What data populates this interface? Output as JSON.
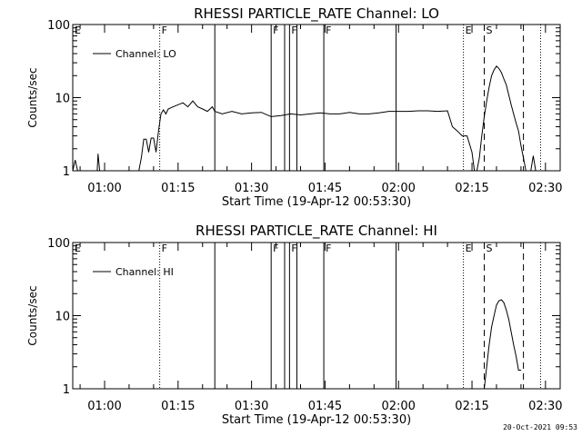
{
  "timestamp": "20-Oct-2021 09:53",
  "chart_data": [
    {
      "type": "line",
      "title": "RHESSI PARTICLE_RATE Channel: LO",
      "xlabel": "Start Time (19-Apr-12 00:53:30)",
      "ylabel": "Counts/sec",
      "y_scale": "log",
      "ylim": [
        1,
        100
      ],
      "xlim": [
        "00:53:30",
        "02:33:00"
      ],
      "x_tick_labels": [
        "01:00",
        "01:15",
        "01:30",
        "01:45",
        "02:00",
        "02:15",
        "02:30"
      ],
      "y_tick_labels": [
        "1",
        "10",
        "100"
      ],
      "legend": {
        "label": "Channel: LO",
        "placement": "top-left"
      },
      "markers": [
        {
          "time": "00:53:30",
          "label": "E",
          "style": "solid"
        },
        {
          "time": "01:11:15",
          "label": "F",
          "style": "dotted"
        },
        {
          "time": "01:22:30",
          "label": "",
          "style": "solid"
        },
        {
          "time": "01:34:00",
          "label": "F",
          "style": "solid"
        },
        {
          "time": "01:36:45",
          "label": "",
          "style": "solid"
        },
        {
          "time": "01:37:45",
          "label": "F",
          "style": "solid"
        },
        {
          "time": "01:39:15",
          "label": "",
          "style": "solid"
        },
        {
          "time": "01:44:45",
          "label": "F",
          "style": "solid"
        },
        {
          "time": "01:59:30",
          "label": "",
          "style": "solid"
        },
        {
          "time": "02:13:15",
          "label": "E",
          "style": "dotted"
        },
        {
          "time": "02:17:30",
          "label": "S",
          "style": "dashed"
        },
        {
          "time": "02:25:30",
          "label": "",
          "style": "dashed"
        },
        {
          "time": "02:29:00",
          "label": "",
          "style": "dotted"
        }
      ],
      "series": [
        {
          "name": "Channel: LO",
          "x": [
            "00:53:30",
            "00:54:00",
            "00:54:30",
            "00:55:00",
            "00:55:30",
            "00:56:00",
            "00:58:30",
            "00:58:40",
            "00:59:00",
            "00:59:30",
            "01:00:00",
            "01:01:00",
            "01:02:00",
            "01:03:00",
            "01:04:00",
            "01:05:00",
            "01:06:00",
            "01:07:00",
            "01:07:30",
            "01:08:00",
            "01:08:30",
            "01:09:00",
            "01:09:30",
            "01:10:00",
            "01:10:30",
            "01:11:00",
            "01:11:30",
            "01:12:00",
            "01:12:30",
            "01:13:00",
            "01:14:00",
            "01:15:00",
            "01:16:00",
            "01:17:00",
            "01:18:00",
            "01:19:00",
            "01:20:00",
            "01:21:00",
            "01:22:00",
            "01:22:30",
            "01:24:00",
            "01:26:00",
            "01:28:00",
            "01:30:00",
            "01:32:00",
            "01:34:00",
            "01:36:00",
            "01:38:00",
            "01:40:00",
            "01:42:00",
            "01:44:00",
            "01:46:00",
            "01:48:00",
            "01:50:00",
            "01:52:00",
            "01:54:00",
            "01:56:00",
            "01:58:00",
            "02:00:00",
            "02:02:00",
            "02:04:00",
            "02:06:00",
            "02:08:00",
            "02:10:00",
            "02:11:00",
            "02:12:00",
            "02:13:00",
            "02:14:00",
            "02:15:00",
            "02:15:30",
            "02:16:00",
            "02:16:30",
            "02:17:00",
            "02:17:30",
            "02:18:00",
            "02:18:30",
            "02:19:00",
            "02:19:30",
            "02:20:00",
            "02:20:30",
            "02:21:00",
            "02:21:30",
            "02:22:00",
            "02:22:30",
            "02:23:00",
            "02:23:30",
            "02:24:00",
            "02:24:30",
            "02:25:00",
            "02:25:30",
            "02:26:00",
            "02:26:30",
            "02:27:00",
            "02:27:30",
            "02:28:00"
          ],
          "y": [
            1.0,
            1.4,
            1.0,
            1.0,
            1.0,
            1.0,
            1.0,
            1.7,
            1.0,
            1.0,
            1.0,
            1.0,
            1.0,
            1.0,
            1.0,
            1.0,
            1.0,
            1.0,
            1.5,
            2.7,
            2.7,
            1.8,
            2.8,
            2.8,
            1.8,
            3.5,
            6.0,
            6.8,
            6.0,
            7.0,
            7.5,
            8.0,
            8.5,
            7.5,
            9.0,
            7.5,
            7.0,
            6.5,
            7.5,
            6.5,
            6.0,
            6.5,
            6.0,
            6.2,
            6.3,
            5.5,
            5.7,
            6.0,
            5.8,
            6.0,
            6.2,
            6.0,
            6.0,
            6.3,
            6.0,
            6.0,
            6.2,
            6.5,
            6.5,
            6.5,
            6.6,
            6.6,
            6.5,
            6.6,
            4.0,
            3.5,
            3.0,
            3.0,
            1.8,
            1.0,
            1.0,
            1.5,
            3.0,
            5.5,
            9.0,
            14.0,
            20.0,
            24.0,
            27.0,
            25.0,
            22.0,
            18.0,
            15.0,
            11.0,
            8.0,
            6.0,
            4.5,
            3.5,
            2.2,
            1.5,
            1.0,
            1.0,
            1.0,
            1.6,
            1.0
          ]
        }
      ]
    },
    {
      "type": "line",
      "title": "RHESSI PARTICLE_RATE Channel: HI",
      "xlabel": "Start Time (19-Apr-12 00:53:30)",
      "ylabel": "Counts/sec",
      "y_scale": "log",
      "ylim": [
        1,
        100
      ],
      "xlim": [
        "00:53:30",
        "02:33:00"
      ],
      "x_tick_labels": [
        "01:00",
        "01:15",
        "01:30",
        "01:45",
        "02:00",
        "02:15",
        "02:30"
      ],
      "y_tick_labels": [
        "1",
        "10",
        "100"
      ],
      "legend": {
        "label": "Channel: HI",
        "placement": "top-left"
      },
      "markers": [
        {
          "time": "00:53:30",
          "label": "E",
          "style": "solid"
        },
        {
          "time": "01:11:15",
          "label": "F",
          "style": "dotted"
        },
        {
          "time": "01:22:30",
          "label": "",
          "style": "solid"
        },
        {
          "time": "01:34:00",
          "label": "F",
          "style": "solid"
        },
        {
          "time": "01:36:45",
          "label": "",
          "style": "solid"
        },
        {
          "time": "01:37:45",
          "label": "F",
          "style": "solid"
        },
        {
          "time": "01:39:15",
          "label": "",
          "style": "solid"
        },
        {
          "time": "01:44:45",
          "label": "F",
          "style": "solid"
        },
        {
          "time": "01:59:30",
          "label": "",
          "style": "solid"
        },
        {
          "time": "02:13:15",
          "label": "E",
          "style": "dotted"
        },
        {
          "time": "02:17:30",
          "label": "S",
          "style": "dashed"
        },
        {
          "time": "02:25:30",
          "label": "",
          "style": "dashed"
        },
        {
          "time": "02:29:00",
          "label": "",
          "style": "dotted"
        }
      ],
      "series": [
        {
          "name": "Channel: HI",
          "x": [
            "02:17:30",
            "02:18:00",
            "02:18:30",
            "02:19:00",
            "02:19:30",
            "02:20:00",
            "02:20:30",
            "02:21:00",
            "02:21:30",
            "02:22:00",
            "02:22:30",
            "02:23:00",
            "02:23:30",
            "02:24:00",
            "02:24:30",
            "02:25:00"
          ],
          "y": [
            1.0,
            2.0,
            4.0,
            7.0,
            10.0,
            14.0,
            16.0,
            16.5,
            15.0,
            12.0,
            9.0,
            6.0,
            4.0,
            2.8,
            1.8,
            1.8
          ]
        }
      ]
    }
  ]
}
